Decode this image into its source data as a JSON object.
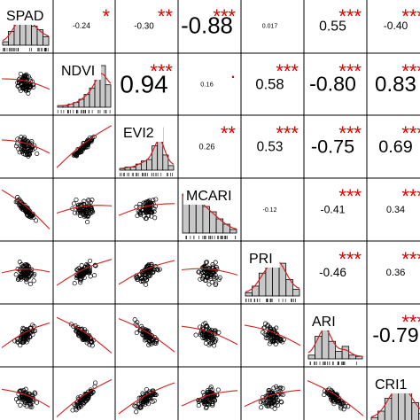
{
  "chart_data": {
    "type": "scatter-matrix",
    "variables": [
      "SPAD",
      "NDVI",
      "EVI2",
      "MCARI",
      "PRI",
      "ARI",
      "CRI1"
    ],
    "correlations": [
      {
        "row": 0,
        "col": 1,
        "r": "-0.24",
        "stars": "*"
      },
      {
        "row": 0,
        "col": 2,
        "r": "-0.30",
        "stars": "**"
      },
      {
        "row": 0,
        "col": 3,
        "r": "-0.88",
        "stars": "***"
      },
      {
        "row": 0,
        "col": 4,
        "r": "0.017",
        "stars": ""
      },
      {
        "row": 0,
        "col": 5,
        "r": "0.55",
        "stars": "***"
      },
      {
        "row": 0,
        "col": 6,
        "r": "-0.40",
        "stars": "***"
      },
      {
        "row": 1,
        "col": 2,
        "r": "0.94",
        "stars": "***"
      },
      {
        "row": 1,
        "col": 3,
        "r": "0.16",
        "stars": "."
      },
      {
        "row": 1,
        "col": 4,
        "r": "0.58",
        "stars": "***"
      },
      {
        "row": 1,
        "col": 5,
        "r": "-0.80",
        "stars": "***"
      },
      {
        "row": 1,
        "col": 6,
        "r": "0.83",
        "stars": "***"
      },
      {
        "row": 2,
        "col": 3,
        "r": "0.26",
        "stars": "**"
      },
      {
        "row": 2,
        "col": 4,
        "r": "0.53",
        "stars": "***"
      },
      {
        "row": 2,
        "col": 5,
        "r": "-0.75",
        "stars": "***"
      },
      {
        "row": 2,
        "col": 6,
        "r": "0.69",
        "stars": "***"
      },
      {
        "row": 3,
        "col": 4,
        "r": "-0.12",
        "stars": ""
      },
      {
        "row": 3,
        "col": 5,
        "r": "-0.41",
        "stars": "***"
      },
      {
        "row": 3,
        "col": 6,
        "r": "0.34",
        "stars": "***"
      },
      {
        "row": 4,
        "col": 5,
        "r": "-0.46",
        "stars": "***"
      },
      {
        "row": 4,
        "col": 6,
        "r": "0.36",
        "stars": "***"
      },
      {
        "row": 5,
        "col": 6,
        "r": "-0.79",
        "stars": "***"
      }
    ],
    "histograms": {
      "SPAD": [
        2,
        8,
        14,
        20,
        18,
        11,
        9,
        5
      ],
      "NDVI": [
        1,
        1,
        2,
        3,
        5,
        8,
        12,
        20,
        26,
        14
      ],
      "EVI2": [
        1,
        2,
        2,
        4,
        6,
        7,
        16,
        28,
        10,
        3
      ],
      "MCARI": [
        22,
        24,
        20,
        15,
        12,
        8,
        5,
        2
      ],
      "PRI": [
        2,
        6,
        14,
        20,
        26,
        20,
        10,
        4
      ],
      "ARI": [
        3,
        18,
        34,
        14,
        6,
        10,
        3,
        2
      ],
      "CRI1": [
        2,
        5,
        11,
        17,
        20,
        15,
        9,
        4
      ]
    },
    "grid": false,
    "legend": "none"
  },
  "colors": {
    "star": "#e00000",
    "density": "#d62020",
    "smooth": "#d62020",
    "bar_fill": "#c8c8c8",
    "frame": "#000000"
  }
}
